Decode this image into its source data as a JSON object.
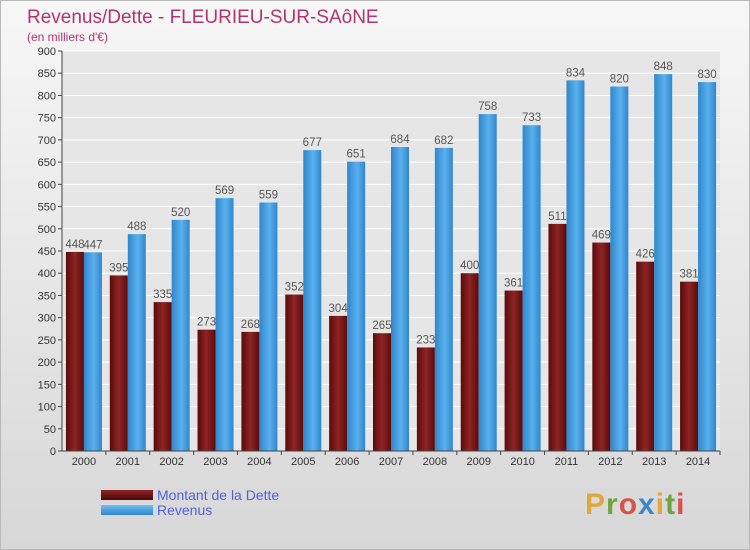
{
  "title": "Revenus/Dette - FLEURIEU-SUR-SAôNE",
  "subtitle": "(en milliers d'€)",
  "logo": {
    "letters": [
      "P",
      "r",
      "o",
      "x",
      "i",
      "t",
      "i"
    ],
    "colors": [
      "#e3a63c",
      "#6fa33d",
      "#d9524a",
      "#3d89c8",
      "#e3a63c",
      "#6fa33d",
      "#d9524a"
    ]
  },
  "chart_data": {
    "type": "bar",
    "categories": [
      "2000",
      "2001",
      "2002",
      "2003",
      "2004",
      "2005",
      "2006",
      "2007",
      "2008",
      "2009",
      "2010",
      "2011",
      "2012",
      "2013",
      "2014"
    ],
    "series": [
      {
        "name": "Montant de la Dette",
        "color": "#7a1414",
        "values": [
          448,
          395,
          335,
          273,
          268,
          352,
          304,
          265,
          233,
          400,
          361,
          511,
          469,
          426,
          381
        ]
      },
      {
        "name": "Revenus",
        "color": "#3d9be0",
        "values": [
          447,
          488,
          520,
          569,
          559,
          677,
          651,
          684,
          682,
          758,
          733,
          834,
          820,
          848,
          830
        ]
      }
    ],
    "y_ticks": [
      "0",
      "50",
      "100",
      "150",
      "200",
      "250",
      "300",
      "350",
      "400",
      "450",
      "500",
      "550",
      "600",
      "650",
      "700",
      "750",
      "800",
      "850",
      "900"
    ],
    "ylim": [
      0,
      900
    ],
    "grid": true,
    "legend": "bottom-left"
  }
}
